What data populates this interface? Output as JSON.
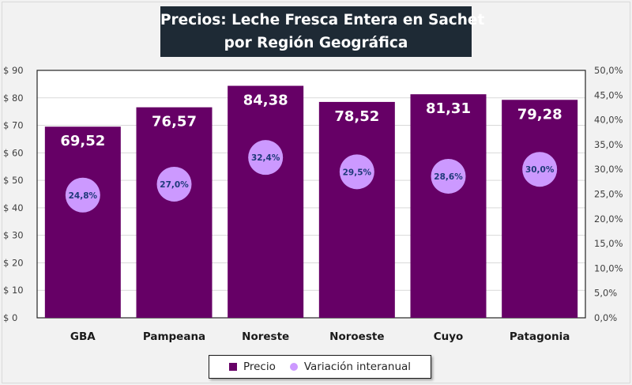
{
  "title": {
    "line1": "Precios: Leche Fresca Entera en Sachet",
    "line2": "por Región Geográfica"
  },
  "legend": {
    "price_label": "Precio",
    "variation_label": "Variación interanual"
  },
  "colors": {
    "bar": "#660066",
    "marker": "#cc99ff",
    "marker_text": "#1f3a7a",
    "title_bg": "#1e2a35",
    "background": "#f2f2f2",
    "plot_bg": "#ffffff",
    "grid": "#d9d9d9"
  },
  "chart_data": {
    "type": "bar",
    "title": "Precios: Leche Fresca Entera en Sachet por Región Geográfica",
    "categories": [
      "GBA",
      "Pampeana",
      "Noreste",
      "Noroeste",
      "Cuyo",
      "Patagonia"
    ],
    "series": [
      {
        "name": "Precio",
        "type": "bar",
        "axis": "left",
        "values": [
          69.52,
          76.57,
          84.38,
          78.52,
          81.31,
          79.28
        ],
        "labels": [
          "69,52",
          "76,57",
          "84,38",
          "78,52",
          "81,31",
          "79,28"
        ]
      },
      {
        "name": "Variación interanual",
        "type": "scatter",
        "axis": "right",
        "values": [
          24.8,
          27.0,
          32.4,
          29.5,
          28.6,
          30.0
        ],
        "labels": [
          "24,8%",
          "27,0%",
          "32,4%",
          "29,5%",
          "28,6%",
          "30,0%"
        ]
      }
    ],
    "left_axis": {
      "ylim": [
        0,
        90
      ],
      "ticks": [
        0,
        10,
        20,
        30,
        40,
        50,
        60,
        70,
        80,
        90
      ],
      "tick_labels": [
        "$ 0",
        "$ 10",
        "$ 20",
        "$ 30",
        "$ 40",
        "$ 50",
        "$ 60",
        "$ 70",
        "$ 80",
        "$ 90"
      ]
    },
    "right_axis": {
      "ylim": [
        0,
        50
      ],
      "ticks": [
        0,
        5,
        10,
        15,
        20,
        25,
        30,
        35,
        40,
        45,
        50
      ],
      "tick_labels": [
        "0,0%",
        "5,0%",
        "10,0%",
        "15,0%",
        "20,0%",
        "25,0%",
        "30,0%",
        "35,0%",
        "40,0%",
        "45,0%",
        "50,0%"
      ]
    },
    "xlabel": "",
    "ylabel": "",
    "grid": true,
    "legend_position": "bottom"
  }
}
